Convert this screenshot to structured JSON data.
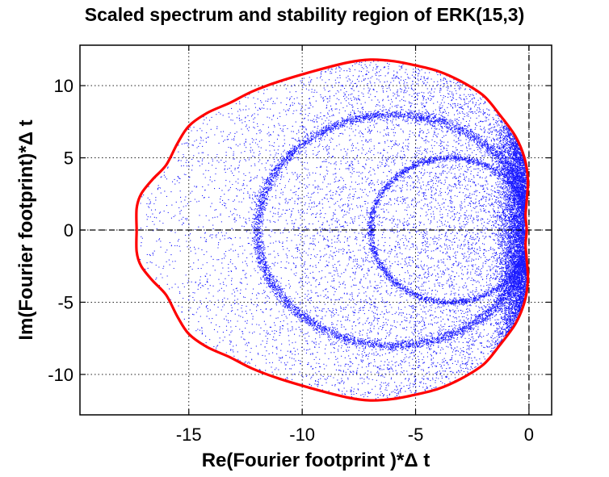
{
  "chart_data": {
    "type": "scatter",
    "title": "Scaled spectrum and stability region of ERK(15,3)",
    "xlabel": "Re(Fourier footprint )*Δ t",
    "ylabel": "Im(Fourier footprint)*Δ t",
    "xlim": [
      -19.8,
      1.0
    ],
    "ylim": [
      -12.8,
      12.8
    ],
    "xticks": [
      -15,
      -10,
      -5,
      0
    ],
    "yticks": [
      -10,
      -5,
      0,
      5,
      10
    ],
    "xtick_labels": [
      "-15",
      "-10",
      "-5",
      "0"
    ],
    "ytick_labels": [
      "-10",
      "-5",
      "0",
      "5",
      "10"
    ],
    "grid": true,
    "grid_style": "dotted",
    "colors": {
      "spectrum": "#0000ff",
      "stability_boundary": "#ff0000",
      "axes": "#000000",
      "background": "#ffffff"
    },
    "reference_lines": {
      "horizontal_at_y": 0,
      "vertical_at_x": 0,
      "style": "dashed"
    },
    "series": [
      {
        "type": "line",
        "points": [
          [
            -17.3,
            0.0
          ],
          [
            -17.3,
            1.5
          ],
          [
            -17.1,
            2.5
          ],
          [
            -16.6,
            3.5
          ],
          [
            -16.0,
            4.5
          ],
          [
            -15.5,
            6.0
          ],
          [
            -15.0,
            7.2
          ],
          [
            -14.2,
            8.1
          ],
          [
            -13.2,
            8.8
          ],
          [
            -12.2,
            9.6
          ],
          [
            -11.0,
            10.3
          ],
          [
            -9.5,
            11.0
          ],
          [
            -8.0,
            11.6
          ],
          [
            -7.0,
            11.8
          ],
          [
            -6.0,
            11.7
          ],
          [
            -5.0,
            11.4
          ],
          [
            -4.0,
            11.0
          ],
          [
            -3.0,
            10.3
          ],
          [
            -2.0,
            9.3
          ],
          [
            -1.3,
            8.0
          ],
          [
            -0.6,
            6.5
          ],
          [
            -0.2,
            5.0
          ],
          [
            -0.05,
            3.5
          ],
          [
            -0.1,
            2.0
          ],
          [
            -0.15,
            1.0
          ],
          [
            -0.1,
            0.0
          ],
          [
            -0.15,
            -1.0
          ],
          [
            -0.1,
            -2.0
          ],
          [
            -0.05,
            -3.5
          ],
          [
            -0.2,
            -5.0
          ],
          [
            -0.6,
            -6.5
          ],
          [
            -1.3,
            -8.0
          ],
          [
            -2.0,
            -9.3
          ],
          [
            -3.0,
            -10.3
          ],
          [
            -4.0,
            -11.0
          ],
          [
            -5.0,
            -11.4
          ],
          [
            -6.0,
            -11.7
          ],
          [
            -7.0,
            -11.8
          ],
          [
            -8.0,
            -11.6
          ],
          [
            -9.5,
            -11.0
          ],
          [
            -11.0,
            -10.3
          ],
          [
            -12.2,
            -9.6
          ],
          [
            -13.2,
            -8.8
          ],
          [
            -14.2,
            -8.1
          ],
          [
            -15.0,
            -7.2
          ],
          [
            -15.5,
            -6.0
          ],
          [
            -16.0,
            -4.5
          ],
          [
            -16.6,
            -3.5
          ],
          [
            -17.1,
            -2.5
          ],
          [
            -17.3,
            -1.5
          ],
          [
            -17.3,
            0.0
          ]
        ]
      },
      {
        "type": "scatter",
        "description_hidden": true,
        "rings": [
          {
            "center": [
              -6.0,
              0.0
            ],
            "radius_x": 6.0,
            "radius_y": 8.0
          },
          {
            "center": [
              -3.5,
              0.0
            ],
            "radius_x": 3.5,
            "radius_y": 5.0
          }
        ]
      }
    ]
  }
}
